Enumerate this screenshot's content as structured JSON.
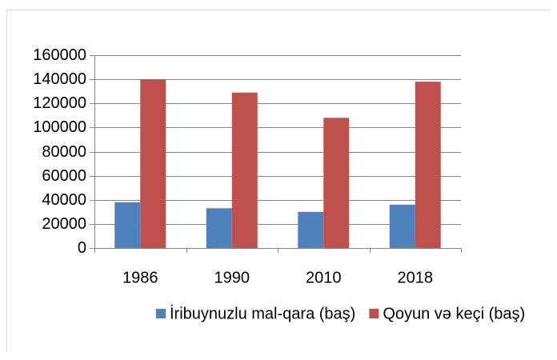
{
  "chart_data": {
    "type": "bar",
    "categories": [
      "1986",
      "1990",
      "2010",
      "2018"
    ],
    "series": [
      {
        "name": "İribuynuzlu mal-qara (baş)",
        "color": "#4f81bd",
        "values": [
          38000,
          33000,
          30000,
          36000
        ]
      },
      {
        "name": "Qoyun və keçi (baş)",
        "color": "#c0504d",
        "values": [
          140000,
          129000,
          108000,
          138000
        ]
      }
    ],
    "ylim": [
      0,
      160000
    ],
    "yticks": [
      0,
      20000,
      40000,
      60000,
      80000,
      100000,
      120000,
      140000,
      160000
    ],
    "grid": true,
    "legend": "bottom"
  }
}
